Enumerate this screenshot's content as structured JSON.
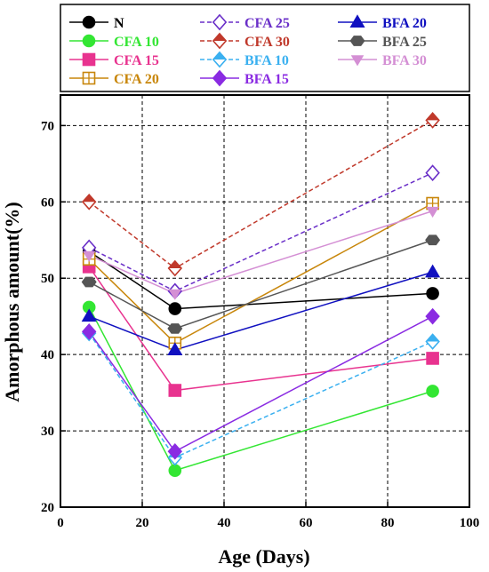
{
  "chart_data": {
    "type": "line",
    "title": "",
    "xlabel": "Age (Days)",
    "ylabel": "Amorphous amount(%)",
    "xlim": [
      0,
      100
    ],
    "ylim": [
      20,
      74
    ],
    "x_ticks": [
      0,
      20,
      40,
      60,
      80,
      100
    ],
    "y_ticks": [
      20,
      30,
      40,
      50,
      60,
      70
    ],
    "grid": "dashed",
    "legend_position": "top",
    "x": [
      7,
      28,
      91
    ],
    "series": [
      {
        "name": "N",
        "values": [
          53.5,
          46,
          48
        ],
        "color": "#000000",
        "marker": "circle",
        "fill": true,
        "dash": false
      },
      {
        "name": "CFA 10",
        "values": [
          46.2,
          24.8,
          35.2
        ],
        "color": "#33e633",
        "marker": "circle",
        "fill": true,
        "dash": false
      },
      {
        "name": "CFA 15",
        "values": [
          51.5,
          35.3,
          39.5
        ],
        "color": "#e8338f",
        "marker": "square",
        "fill": true,
        "dash": false
      },
      {
        "name": "CFA 20",
        "values": [
          52.5,
          41.5,
          59.8
        ],
        "color": "#c8860a",
        "marker": "square-cross",
        "fill": false,
        "dash": false
      },
      {
        "name": "CFA 25",
        "values": [
          54,
          48.3,
          63.8
        ],
        "color": "#6a2fc8",
        "marker": "diamond",
        "fill": false,
        "dash": true
      },
      {
        "name": "CFA 30",
        "values": [
          60,
          51.3,
          70.7
        ],
        "color": "#c0392b",
        "marker": "diamond-half",
        "fill": true,
        "dash": true
      },
      {
        "name": "BFA 10",
        "values": [
          42.8,
          26.5,
          41.7
        ],
        "color": "#3ab0f0",
        "marker": "diamond-half",
        "fill": true,
        "dash": true
      },
      {
        "name": "BFA 15",
        "values": [
          43,
          27.3,
          45
        ],
        "color": "#8a2be2",
        "marker": "diamond",
        "fill": true,
        "dash": false
      },
      {
        "name": "BFA 20",
        "values": [
          45,
          40.6,
          50.8
        ],
        "color": "#1010c0",
        "marker": "triangle-up",
        "fill": true,
        "dash": false
      },
      {
        "name": "BFA 25",
        "values": [
          49.5,
          43.4,
          55
        ],
        "color": "#555555",
        "marker": "hexagon",
        "fill": true,
        "dash": false
      },
      {
        "name": "BFA 30",
        "values": [
          53,
          48,
          58.8
        ],
        "color": "#d48fd4",
        "marker": "triangle-down",
        "fill": true,
        "dash": false
      }
    ]
  }
}
